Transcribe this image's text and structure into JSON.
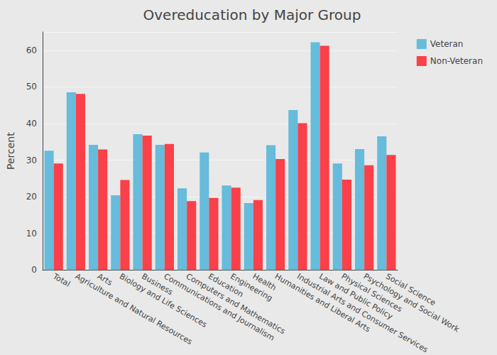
{
  "chart_data": {
    "type": "bar",
    "title": "Overeducation by Major Group",
    "y_label": "Percent",
    "categories": [
      "Total",
      "Agriculture and Natural Resources",
      "Arts",
      "Biology and Life Sciences",
      "Business",
      "Communications and Journalism",
      "Computers and Mathematics",
      "Education",
      "Engineering",
      "Health",
      "Humanities and Liberal Arts",
      "Industrial Arts and Consumer Services",
      "Law and Public Policy",
      "Physical Sciences",
      "Psychology and Social Work",
      "Social Science"
    ],
    "series": [
      {
        "name": "Veteran",
        "color": "#67bbdb",
        "values": [
          32.6,
          48.5,
          34.2,
          20.4,
          37.1,
          34.2,
          22.3,
          32.1,
          23.1,
          18.3,
          34.1,
          43.7,
          62.2,
          29.1,
          33.0,
          36.5
        ]
      },
      {
        "name": "Non-Veteran",
        "color": "#fa4049",
        "values": [
          29.1,
          48.1,
          32.9,
          24.6,
          36.7,
          34.4,
          18.8,
          19.7,
          22.5,
          19.1,
          30.3,
          40.1,
          61.2,
          24.7,
          28.6,
          31.4
        ]
      }
    ],
    "ylim": [
      0,
      65
    ],
    "yticks": [
      0,
      10,
      20,
      30,
      40,
      50,
      60
    ],
    "grid": true,
    "legend": "top-right"
  }
}
